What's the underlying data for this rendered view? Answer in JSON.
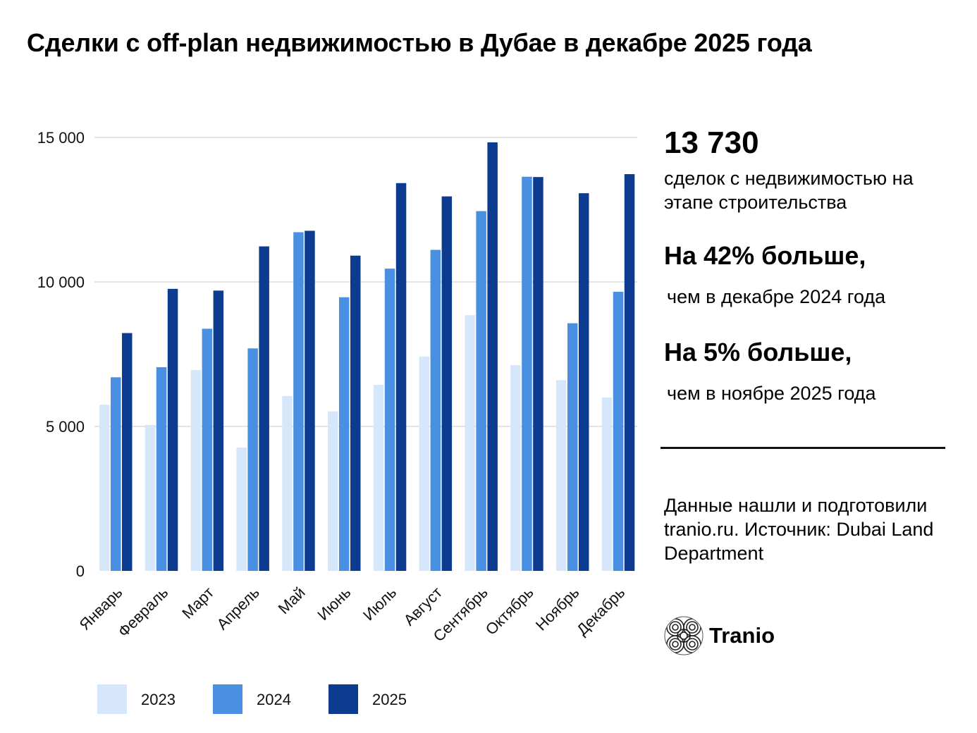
{
  "title": "Сделки с off-plan недвижимостью в Дубае в декабре 2025 года",
  "stats": {
    "total_value": "13 730",
    "total_caption": "сделок с недвижимостью на этапе строительства",
    "yoy_head": "На 42% больше,",
    "yoy_sub": "чем в декабре 2024 года",
    "mom_head": "На 5% больше,",
    "mom_sub": "чем в ноябре 2025 года"
  },
  "source_text": "Данные нашли и подготовили tranio.ru. Источник: Dubai Land Department",
  "brand": {
    "name": "Tranio"
  },
  "colors": {
    "s2023": "#d6e7fb",
    "s2024": "#4a90e2",
    "s2025": "#0d3b8f",
    "grid": "#c8c8c8"
  },
  "chart_data": {
    "type": "bar",
    "title": "Сделки с off-plan недвижимостью в Дубае в декабре 2025 года",
    "xlabel": "",
    "ylabel": "",
    "ylim": [
      0,
      15000
    ],
    "yticks": [
      0,
      5000,
      10000,
      15000
    ],
    "ytick_labels": [
      "0",
      "5 000",
      "10 000",
      "15 000"
    ],
    "grid": true,
    "legend_position": "bottom-left",
    "categories": [
      "Январь",
      "Февраль",
      "Март",
      "Апрель",
      "Май",
      "Июнь",
      "Июль",
      "Август",
      "Сентябрь",
      "Октябрь",
      "Ноябрь",
      "Декабрь"
    ],
    "series": [
      {
        "name": "2023",
        "values": [
          5750,
          5050,
          6950,
          4270,
          6050,
          5520,
          6440,
          7420,
          8850,
          7120,
          6600,
          6000
        ]
      },
      {
        "name": "2024",
        "values": [
          6700,
          7050,
          8380,
          7700,
          11720,
          9470,
          10460,
          11110,
          12450,
          13640,
          8570,
          9660
        ]
      },
      {
        "name": "2025",
        "values": [
          8230,
          9760,
          9700,
          11230,
          11770,
          10910,
          13420,
          12960,
          14830,
          13630,
          13070,
          13730
        ]
      }
    ]
  }
}
